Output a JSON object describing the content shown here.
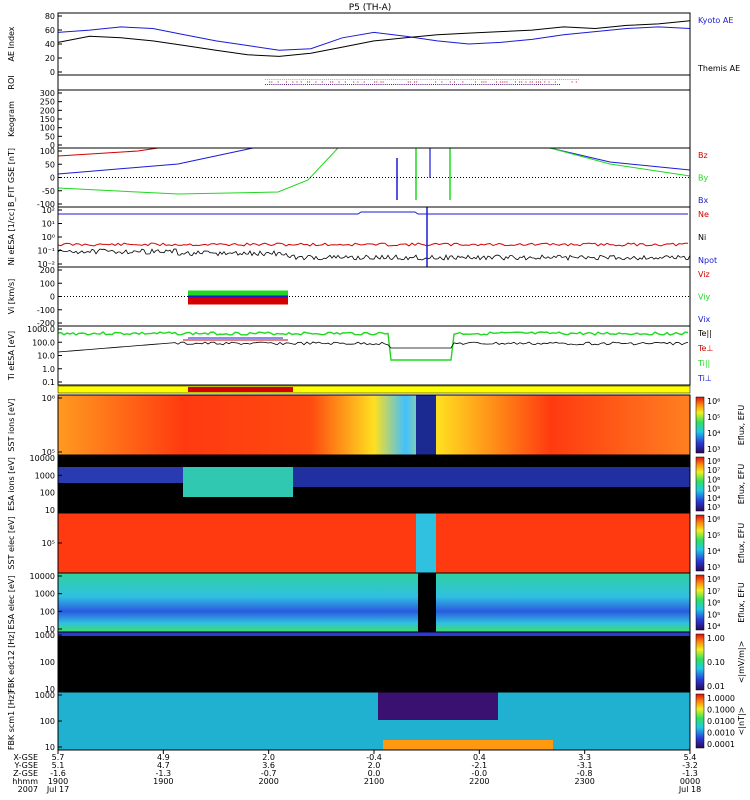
{
  "title": "P5 (TH-A)",
  "colors": {
    "red": "#d40000",
    "green": "#1fd81f",
    "blue": "#1a1ad8",
    "black": "#000000",
    "yellow": "#ffff00",
    "orange": "#ff9900"
  },
  "chart_data": [
    {
      "id": "ae",
      "type": "line",
      "ylabel": "AE Index",
      "yticks": [
        "80",
        "60",
        "40",
        "20",
        "0"
      ],
      "ylim": [
        0,
        80
      ],
      "legend": [
        {
          "name": "Kyoto AE",
          "color": "#1a1ad8"
        },
        {
          "name": "Themis AE",
          "color": "#000000"
        }
      ],
      "series": [
        {
          "name": "Kyoto AE",
          "color": "#1a1ad8",
          "x": [
            0,
            0.05,
            0.1,
            0.15,
            0.2,
            0.25,
            0.3,
            0.35,
            0.4,
            0.45,
            0.5,
            0.55,
            0.6,
            0.65,
            0.7,
            0.75,
            0.8,
            0.85,
            0.9,
            0.95,
            1.0
          ],
          "values": [
            55,
            58,
            62,
            60,
            52,
            44,
            38,
            32,
            34,
            48,
            55,
            50,
            44,
            40,
            42,
            46,
            52,
            56,
            60,
            62,
            60
          ]
        },
        {
          "name": "Themis AE",
          "color": "#000000",
          "x": [
            0,
            0.05,
            0.1,
            0.15,
            0.2,
            0.25,
            0.3,
            0.35,
            0.4,
            0.45,
            0.5,
            0.55,
            0.6,
            0.65,
            0.7,
            0.75,
            0.8,
            0.85,
            0.9,
            0.95,
            1.0
          ],
          "values": [
            42,
            50,
            48,
            44,
            38,
            32,
            26,
            24,
            28,
            36,
            44,
            48,
            52,
            54,
            56,
            58,
            62,
            60,
            64,
            66,
            70
          ]
        }
      ]
    },
    {
      "id": "roi",
      "type": "scatter",
      "ylabel": "ROI"
    },
    {
      "id": "keogram",
      "type": "heatmap",
      "ylabel": "Keogram",
      "yticks": [
        "300",
        "250",
        "200",
        "150",
        "100",
        "50",
        "0"
      ]
    },
    {
      "id": "bfit",
      "type": "line",
      "ylabel": "B_FIT GSE [nT]",
      "yticks": [
        "100",
        "50",
        "0",
        "-50",
        "-100"
      ],
      "ylim": [
        -100,
        100
      ],
      "legend": [
        {
          "name": "Bz",
          "color": "#d40000"
        },
        {
          "name": "By",
          "color": "#1fd81f"
        },
        {
          "name": "Bx",
          "color": "#1a1ad8"
        }
      ]
    },
    {
      "id": "density",
      "type": "line",
      "ylabel": "Ni eESA [1/cc]",
      "yticks": [
        "10²",
        "10¹",
        "10⁰",
        "10⁻¹",
        "10⁻²"
      ],
      "legend": [
        {
          "name": "Ne",
          "color": "#d40000"
        },
        {
          "name": "Ni",
          "color": "#000000"
        },
        {
          "name": "Npot",
          "color": "#1a1ad8"
        }
      ]
    },
    {
      "id": "velocity",
      "type": "line",
      "ylabel": "Vi [km/s]",
      "yticks": [
        "200",
        "100",
        "0",
        "-100",
        "-200"
      ],
      "ylim": [
        -200,
        200
      ],
      "legend": [
        {
          "name": "Viz",
          "color": "#d40000"
        },
        {
          "name": "Viy",
          "color": "#1fd81f"
        },
        {
          "name": "Vix",
          "color": "#1a1ad8"
        }
      ]
    },
    {
      "id": "temperature",
      "type": "line",
      "ylabel": "Ti eESA [eV]",
      "yticks": [
        "1000.0",
        "100.0",
        "10.0",
        "1.0",
        "0.1"
      ],
      "legend": [
        {
          "name": "Te||",
          "color": "#000000"
        },
        {
          "name": "Te⊥",
          "color": "#d40000"
        },
        {
          "name": "Ti||",
          "color": "#1fd81f"
        },
        {
          "name": "Ti⊥",
          "color": "#1a1ad8"
        }
      ]
    },
    {
      "id": "sst-ion",
      "type": "heatmap",
      "ylabel": "SST ions [eV]",
      "yticks": [
        "10⁶",
        "10⁵"
      ],
      "cbar_ticks": [
        "10⁶",
        "10⁵",
        "10⁴",
        "10³"
      ],
      "cbar_label": "Eflux, EFU"
    },
    {
      "id": "esa-ion",
      "type": "heatmap",
      "ylabel": "ESA ions [eV]",
      "yticks": [
        "10000",
        "1000",
        "100",
        "10"
      ],
      "cbar_ticks": [
        "10⁸",
        "10⁷",
        "10⁶",
        "10⁵",
        "10⁴",
        "10³"
      ],
      "cbar_label": "Eflux, EFU"
    },
    {
      "id": "sst-elec",
      "type": "heatmap",
      "ylabel": "SST elec [eV]",
      "yticks": [
        "10⁵"
      ],
      "cbar_ticks": [
        "10⁶",
        "10⁵",
        "10⁴",
        "10³"
      ],
      "cbar_label": "Eflux, EFU"
    },
    {
      "id": "esa-elec",
      "type": "heatmap",
      "ylabel": "ESA elec [eV]",
      "yticks": [
        "10000",
        "1000",
        "100",
        "10"
      ],
      "cbar_ticks": [
        "10⁸",
        "10⁷",
        "10⁶",
        "10⁵",
        "10⁴"
      ],
      "cbar_label": "Eflux, EFU"
    },
    {
      "id": "fbk1",
      "type": "heatmap",
      "ylabel": "FBK edc12 [Hz]",
      "yticks": [
        "1000",
        "100",
        "10"
      ],
      "cbar_ticks": [
        "1.00",
        "0.10",
        "0.01"
      ],
      "cbar_label": "<|mV/m|>"
    },
    {
      "id": "fbk2",
      "type": "heatmap",
      "ylabel": "FBK scm1 [Hz]",
      "yticks": [
        "1000",
        "100",
        "10"
      ],
      "cbar_ticks": [
        "1.0000",
        "0.1000",
        "0.0100",
        "0.0010",
        "0.0001"
      ],
      "cbar_label": "<|nT|>"
    }
  ],
  "xaxis": {
    "row_labels": [
      "X-GSE",
      "Y-GSE",
      "Z-GSE",
      "hhmm",
      "2007"
    ],
    "ticks": [
      {
        "vals": [
          "5.7",
          "5.1",
          "-1.6",
          "1900",
          "Jul 17"
        ]
      },
      {
        "vals": [
          "4.9",
          "4.7",
          "-1.3",
          "1900",
          ""
        ]
      },
      {
        "vals": [
          "2.0",
          "3.6",
          "-0.7",
          "2000",
          ""
        ]
      },
      {
        "vals": [
          "-0.4",
          "2.0",
          "0.0",
          "2100",
          ""
        ]
      },
      {
        "vals": [
          "0.4",
          "-2.1",
          "-0.0",
          "2200",
          ""
        ]
      },
      {
        "vals": [
          "3.3",
          "-3.1",
          "-0.8",
          "2300",
          ""
        ]
      },
      {
        "vals": [
          "5.4",
          "-3.2",
          "-1.3",
          "0000",
          "Jul 18"
        ]
      }
    ]
  }
}
